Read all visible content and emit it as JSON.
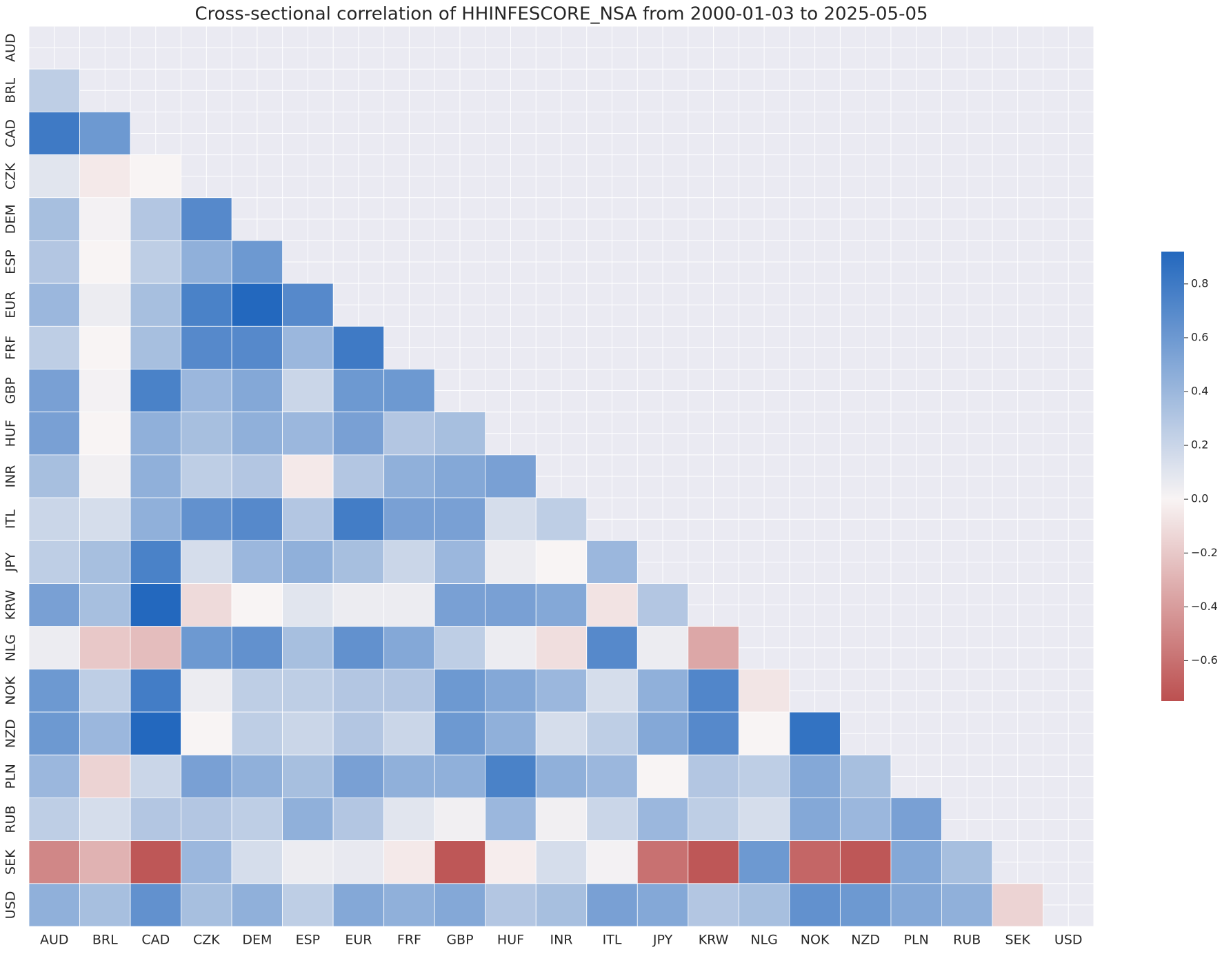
{
  "chart_data": {
    "type": "heatmap",
    "title": "Cross-sectional correlation of HHINFESCORE_NSA from 2000-01-03 to 2025-05-05",
    "categories": [
      "AUD",
      "BRL",
      "CAD",
      "CZK",
      "DEM",
      "ESP",
      "EUR",
      "FRF",
      "GBP",
      "HUF",
      "INR",
      "ITL",
      "JPY",
      "KRW",
      "NLG",
      "NOK",
      "NZD",
      "PLN",
      "RUB",
      "SEK",
      "USD"
    ],
    "values": [
      [
        null,
        null,
        null,
        null,
        null,
        null,
        null,
        null,
        null,
        null,
        null,
        null,
        null,
        null,
        null,
        null,
        null,
        null,
        null,
        null,
        null
      ],
      [
        0.25,
        null,
        null,
        null,
        null,
        null,
        null,
        null,
        null,
        null,
        null,
        null,
        null,
        null,
        null,
        null,
        null,
        null,
        null,
        null,
        null
      ],
      [
        0.8,
        0.6,
        null,
        null,
        null,
        null,
        null,
        null,
        null,
        null,
        null,
        null,
        null,
        null,
        null,
        null,
        null,
        null,
        null,
        null,
        null
      ],
      [
        0.1,
        -0.05,
        0.0,
        null,
        null,
        null,
        null,
        null,
        null,
        null,
        null,
        null,
        null,
        null,
        null,
        null,
        null,
        null,
        null,
        null,
        null
      ],
      [
        0.35,
        0.02,
        0.3,
        0.7,
        null,
        null,
        null,
        null,
        null,
        null,
        null,
        null,
        null,
        null,
        null,
        null,
        null,
        null,
        null,
        null,
        null
      ],
      [
        0.3,
        0.0,
        0.25,
        0.45,
        0.6,
        null,
        null,
        null,
        null,
        null,
        null,
        null,
        null,
        null,
        null,
        null,
        null,
        null,
        null,
        null,
        null
      ],
      [
        0.4,
        0.05,
        0.35,
        0.75,
        0.92,
        0.7,
        null,
        null,
        null,
        null,
        null,
        null,
        null,
        null,
        null,
        null,
        null,
        null,
        null,
        null,
        null
      ],
      [
        0.25,
        0.0,
        0.35,
        0.7,
        0.7,
        0.4,
        0.8,
        null,
        null,
        null,
        null,
        null,
        null,
        null,
        null,
        null,
        null,
        null,
        null,
        null,
        null
      ],
      [
        0.55,
        0.02,
        0.75,
        0.4,
        0.5,
        0.2,
        0.6,
        0.6,
        null,
        null,
        null,
        null,
        null,
        null,
        null,
        null,
        null,
        null,
        null,
        null,
        null
      ],
      [
        0.55,
        0.0,
        0.45,
        0.35,
        0.45,
        0.4,
        0.55,
        0.3,
        0.35,
        null,
        null,
        null,
        null,
        null,
        null,
        null,
        null,
        null,
        null,
        null,
        null
      ],
      [
        0.35,
        0.03,
        0.45,
        0.25,
        0.3,
        -0.05,
        0.3,
        0.45,
        0.5,
        0.55,
        null,
        null,
        null,
        null,
        null,
        null,
        null,
        null,
        null,
        null,
        null
      ],
      [
        0.2,
        0.15,
        0.45,
        0.65,
        0.7,
        0.3,
        0.78,
        0.55,
        0.55,
        0.15,
        0.25,
        null,
        null,
        null,
        null,
        null,
        null,
        null,
        null,
        null,
        null
      ],
      [
        0.25,
        0.35,
        0.75,
        0.15,
        0.4,
        0.45,
        0.35,
        0.2,
        0.4,
        0.05,
        0.0,
        0.4,
        null,
        null,
        null,
        null,
        null,
        null,
        null,
        null,
        null
      ],
      [
        0.55,
        0.35,
        0.92,
        -0.12,
        0.0,
        0.1,
        0.05,
        0.05,
        0.55,
        0.55,
        0.5,
        -0.08,
        0.3,
        null,
        null,
        null,
        null,
        null,
        null,
        null,
        null
      ],
      [
        0.05,
        -0.2,
        -0.25,
        0.6,
        0.65,
        0.35,
        0.65,
        0.5,
        0.25,
        0.05,
        -0.1,
        0.7,
        0.05,
        -0.35,
        null,
        null,
        null,
        null,
        null,
        null,
        null
      ],
      [
        0.6,
        0.25,
        0.78,
        0.05,
        0.25,
        0.25,
        0.3,
        0.3,
        0.6,
        0.5,
        0.4,
        0.15,
        0.45,
        0.72,
        -0.07,
        null,
        null,
        null,
        null,
        null,
        null
      ],
      [
        0.6,
        0.4,
        0.92,
        0.0,
        0.25,
        0.2,
        0.3,
        0.2,
        0.6,
        0.45,
        0.15,
        0.25,
        0.5,
        0.7,
        0.0,
        0.85,
        null,
        null,
        null,
        null,
        null
      ],
      [
        0.4,
        -0.15,
        0.2,
        0.55,
        0.45,
        0.35,
        0.55,
        0.45,
        0.45,
        0.75,
        0.45,
        0.4,
        0.0,
        0.3,
        0.25,
        0.5,
        0.35,
        null,
        null,
        null,
        null
      ],
      [
        0.25,
        0.15,
        0.3,
        0.3,
        0.25,
        0.45,
        0.3,
        0.1,
        0.03,
        0.4,
        0.03,
        0.2,
        0.4,
        0.25,
        0.15,
        0.5,
        0.4,
        0.55,
        null,
        null,
        null
      ],
      [
        -0.5,
        -0.3,
        -0.72,
        0.4,
        0.15,
        0.05,
        0.07,
        -0.05,
        -0.72,
        -0.03,
        0.15,
        0.02,
        -0.6,
        -0.72,
        0.6,
        -0.65,
        -0.72,
        0.5,
        0.35,
        null,
        null
      ],
      [
        0.45,
        0.35,
        0.65,
        0.35,
        0.45,
        0.25,
        0.5,
        0.45,
        0.5,
        0.3,
        0.35,
        0.55,
        0.5,
        0.3,
        0.35,
        0.65,
        0.6,
        0.5,
        0.45,
        -0.15,
        null
      ]
    ],
    "clim": [
      -0.75,
      0.92
    ],
    "colors": [
      "#bc5050",
      "#f8f4f4",
      "#2368be"
    ],
    "cticks": [
      {
        "value": -0.6,
        "label": "−0.6"
      },
      {
        "value": -0.4,
        "label": "−0.4"
      },
      {
        "value": -0.2,
        "label": "−0.2"
      },
      {
        "value": 0,
        "label": "0.0"
      },
      0.2,
      0.4,
      0.6,
      0.8
    ]
  }
}
